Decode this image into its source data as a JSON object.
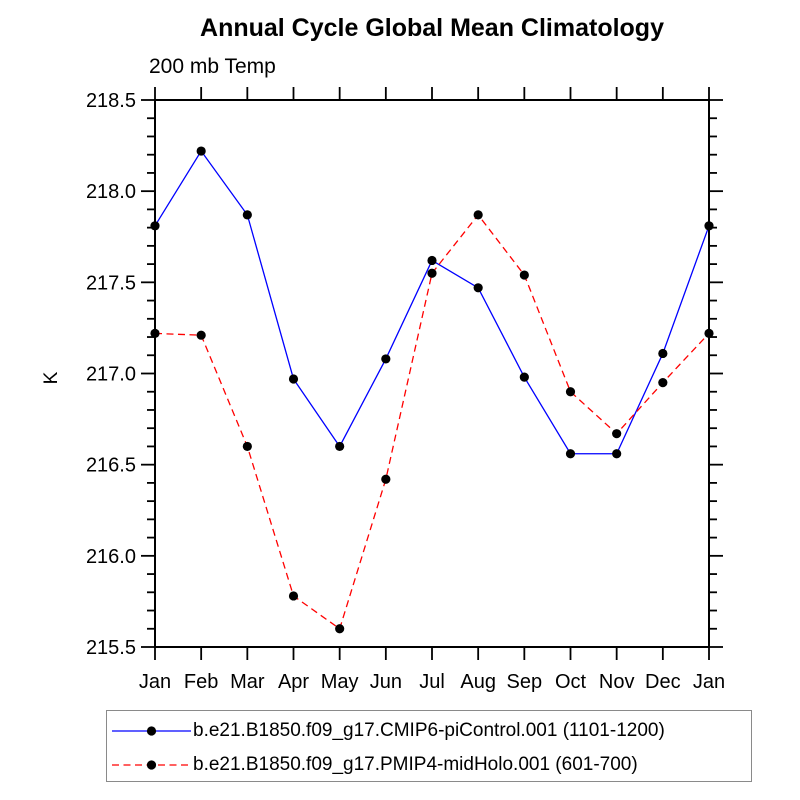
{
  "chart_data": {
    "type": "line",
    "title": "Annual Cycle Global Mean Climatology",
    "subtitle": "200 mb Temp",
    "xlabel": "",
    "ylabel": "K",
    "categories": [
      "Jan",
      "Feb",
      "Mar",
      "Apr",
      "May",
      "Jun",
      "Jul",
      "Aug",
      "Sep",
      "Oct",
      "Nov",
      "Dec",
      "Jan"
    ],
    "ylim": [
      215.5,
      218.5
    ],
    "ytick_step": 0.5,
    "minor_tick_step": 0.1,
    "grid": false,
    "legend_position": "bottom",
    "frame_color": "#000000",
    "text_color": "#000000",
    "series": [
      {
        "name": "b.e21.B1850.f09_g17.CMIP6-piControl.001 (1101-1200)",
        "color": "#0000ff",
        "line_style": "solid",
        "marker": "circle",
        "marker_color": "#000000",
        "values": [
          217.81,
          218.22,
          217.87,
          216.97,
          216.6,
          217.08,
          217.62,
          217.47,
          216.98,
          216.56,
          216.56,
          217.11,
          217.81
        ]
      },
      {
        "name": "b.e21.B1850.f09_g17.PMIP4-midHolo.001 (601-700)",
        "color": "#ff0000",
        "line_style": "dashed",
        "marker": "circle",
        "marker_color": "#000000",
        "values": [
          217.22,
          217.21,
          216.6,
          215.78,
          215.6,
          216.42,
          217.55,
          217.87,
          217.54,
          216.9,
          216.67,
          216.95,
          217.22
        ]
      }
    ]
  }
}
